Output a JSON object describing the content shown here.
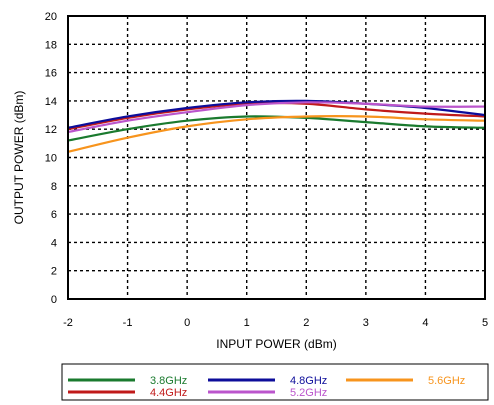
{
  "chart_data": {
    "type": "line",
    "xlabel": "INPUT POWER (dBm)",
    "ylabel": "OUTPUT POWER (dBm)",
    "xlim": [
      -2,
      5
    ],
    "ylim": [
      0,
      20
    ],
    "xticks": [
      -2,
      -1,
      0,
      1,
      2,
      3,
      4,
      5
    ],
    "yticks": [
      0,
      2,
      4,
      6,
      8,
      10,
      12,
      14,
      16,
      18,
      20
    ],
    "grid": true,
    "grid_style": "dotted",
    "legend_position": "bottom",
    "series": [
      {
        "name": "3.8GHz",
        "color": "#1a7a2e",
        "x": [
          -2,
          -1,
          0,
          1,
          2,
          3,
          4,
          5
        ],
        "values": [
          11.2,
          12.0,
          12.6,
          12.9,
          12.8,
          12.5,
          12.2,
          12.1
        ]
      },
      {
        "name": "4.4GHz",
        "color": "#c01a1a",
        "x": [
          -2,
          -1,
          0,
          1,
          2,
          3,
          4,
          5
        ],
        "values": [
          12.0,
          12.8,
          13.4,
          13.8,
          13.8,
          13.4,
          13.1,
          12.9
        ]
      },
      {
        "name": "4.8GHz",
        "color": "#0d0d9a",
        "x": [
          -2,
          -1,
          0,
          1,
          2,
          3,
          4,
          5
        ],
        "values": [
          12.1,
          12.9,
          13.5,
          13.9,
          14.0,
          13.8,
          13.5,
          13.0
        ]
      },
      {
        "name": "5.2GHz",
        "color": "#bb55cc",
        "x": [
          -2,
          -1,
          0,
          1,
          2,
          3,
          4,
          5
        ],
        "values": [
          11.8,
          12.6,
          13.2,
          13.7,
          13.9,
          13.8,
          13.6,
          13.6
        ]
      },
      {
        "name": "5.6GHz",
        "color": "#f7941d",
        "x": [
          -2,
          -1,
          0,
          1,
          2,
          3,
          4,
          5
        ],
        "values": [
          10.4,
          11.4,
          12.2,
          12.7,
          12.9,
          12.9,
          12.7,
          12.6
        ]
      }
    ]
  }
}
